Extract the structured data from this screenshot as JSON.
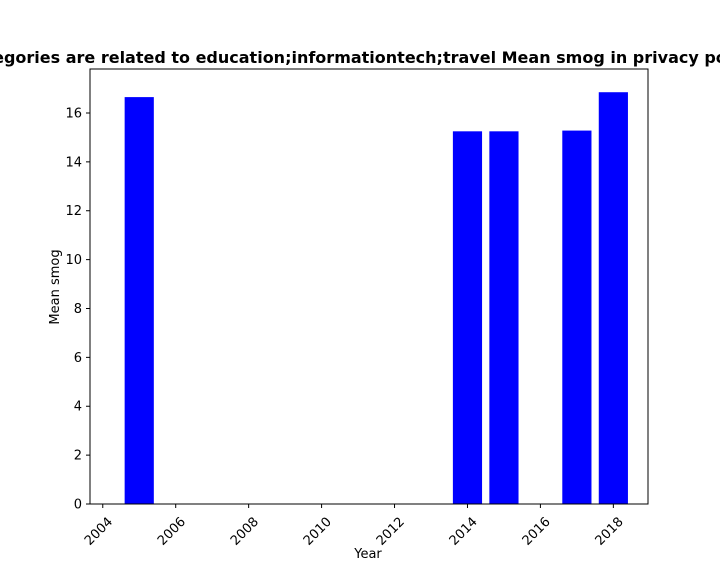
{
  "chart_data": {
    "type": "bar",
    "title": "Categories are related to education;informationtech;travel Mean smog in privacy policies",
    "xlabel": "Year",
    "ylabel": "Mean smog",
    "x": [
      2005,
      2014,
      2015,
      2017,
      2018
    ],
    "values": [
      16.65,
      15.25,
      15.25,
      15.28,
      16.85
    ],
    "xlim": [
      2003.65,
      2018.95
    ],
    "ylim": [
      0,
      17.8
    ],
    "xticks": [
      2004,
      2006,
      2008,
      2010,
      2012,
      2014,
      2016,
      2018
    ],
    "yticks": [
      0,
      2,
      4,
      6,
      8,
      10,
      12,
      14,
      16
    ],
    "bar_color": "#0000ff",
    "grid": false,
    "legend": "none"
  }
}
